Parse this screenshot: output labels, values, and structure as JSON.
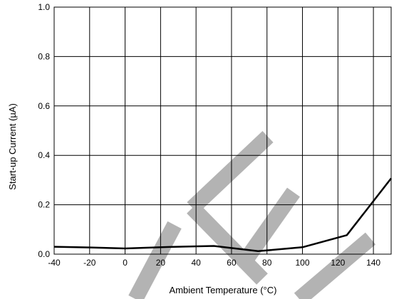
{
  "chart_data": {
    "type": "line",
    "xlabel_text": "Ambient Temperature (",
    "xlabel_unit": "°C)",
    "ylabel": "Start-up Current (µA)",
    "xlim": [
      -40,
      150
    ],
    "ylim": [
      0.0,
      1.0
    ],
    "x_ticks": [
      -40,
      -20,
      0,
      20,
      40,
      60,
      80,
      100,
      120,
      140
    ],
    "x_tick_labels": [
      "-40",
      "-20",
      "0",
      "20",
      "40",
      "60",
      "80",
      "100",
      "120",
      "140"
    ],
    "y_ticks": [
      0.0,
      0.2,
      0.4,
      0.6,
      0.8,
      1.0
    ],
    "y_tick_labels": [
      "0.0",
      "0.2",
      "0.4",
      "0.6",
      "0.8",
      "1.0"
    ],
    "grid": true,
    "series": [
      {
        "x": [
          -40,
          -20,
          0,
          25,
          50,
          75,
          100,
          125,
          150
        ],
        "y": [
          0.03,
          0.027,
          0.023,
          0.029,
          0.033,
          0.012,
          0.028,
          0.077,
          0.307
        ]
      }
    ],
    "line_color": "#000000",
    "watermark_color": "#b3b3b3"
  }
}
